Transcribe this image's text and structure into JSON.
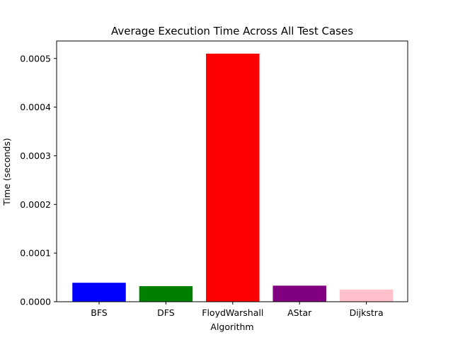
{
  "chart_data": {
    "type": "bar",
    "title": "Average Execution Time Across All Test Cases",
    "xlabel": "Algorithm",
    "ylabel": "Time (seconds)",
    "categories": [
      "BFS",
      "DFS",
      "FloydWarshall",
      "AStar",
      "Dijkstra"
    ],
    "values": [
      3.9e-05,
      3.2e-05,
      0.00051,
      3.3e-05,
      2.5e-05
    ],
    "colors": [
      "#0000ff",
      "#008000",
      "#ff0000",
      "#800080",
      "#ffc0cb"
    ],
    "ylim": [
      0,
      0.000536
    ],
    "yticks": [
      0,
      0.0001,
      0.0002,
      0.0003,
      0.0004,
      0.0005
    ],
    "ytick_labels": [
      "0.0000",
      "0.0001",
      "0.0002",
      "0.0003",
      "0.0004",
      "0.0005"
    ],
    "grid": false,
    "legend": "none"
  }
}
